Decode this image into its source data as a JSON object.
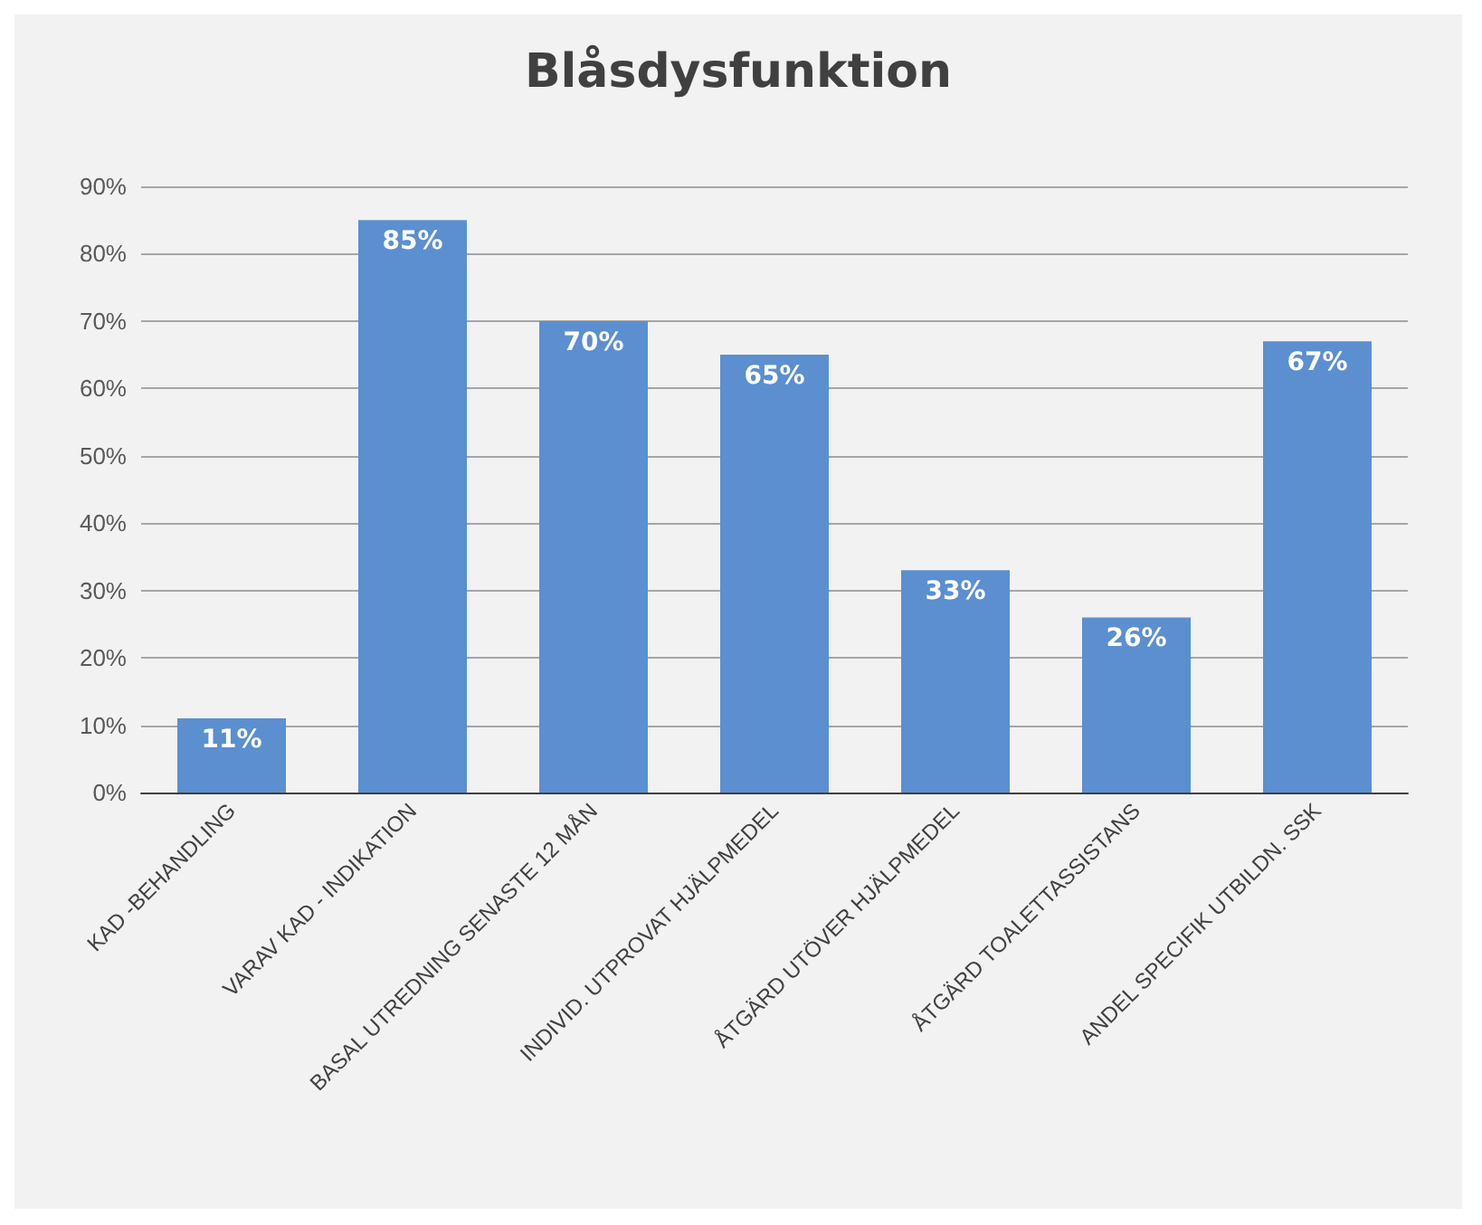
{
  "chart_data": {
    "type": "bar",
    "title": "Blåsdysfunktion",
    "categories": [
      "KAD -BEHANDLING",
      "VARAV KAD - INDIKATION",
      "BASAL UTREDNING SENASTE 12 MÅN",
      "INDIVID. UTPROVAT HJÄLPMEDEL",
      "ÅTGÄRD UTÖVER HJÄLPMEDEL",
      "ÅTGÄRD TOALETTASSISTANS",
      "ANDEL SPECIFIK UTBILDN. SSK"
    ],
    "values": [
      11,
      85,
      70,
      65,
      33,
      26,
      67
    ],
    "value_labels": [
      "11%",
      "85%",
      "70%",
      "65%",
      "33%",
      "26%",
      "67%"
    ],
    "color": "#5b8fd0",
    "ylim": [
      0,
      90
    ],
    "yticks": [
      {
        "value": 0,
        "label": "0%"
      },
      {
        "value": 10,
        "label": "10%"
      },
      {
        "value": 20,
        "label": "20%"
      },
      {
        "value": 30,
        "label": "30%"
      },
      {
        "value": 40,
        "label": "40%"
      },
      {
        "value": 50,
        "label": "50%"
      },
      {
        "value": 60,
        "label": "60%"
      },
      {
        "value": 70,
        "label": "70%"
      },
      {
        "value": 80,
        "label": "80%"
      },
      {
        "value": 90,
        "label": "90%"
      }
    ],
    "grid": "y"
  }
}
